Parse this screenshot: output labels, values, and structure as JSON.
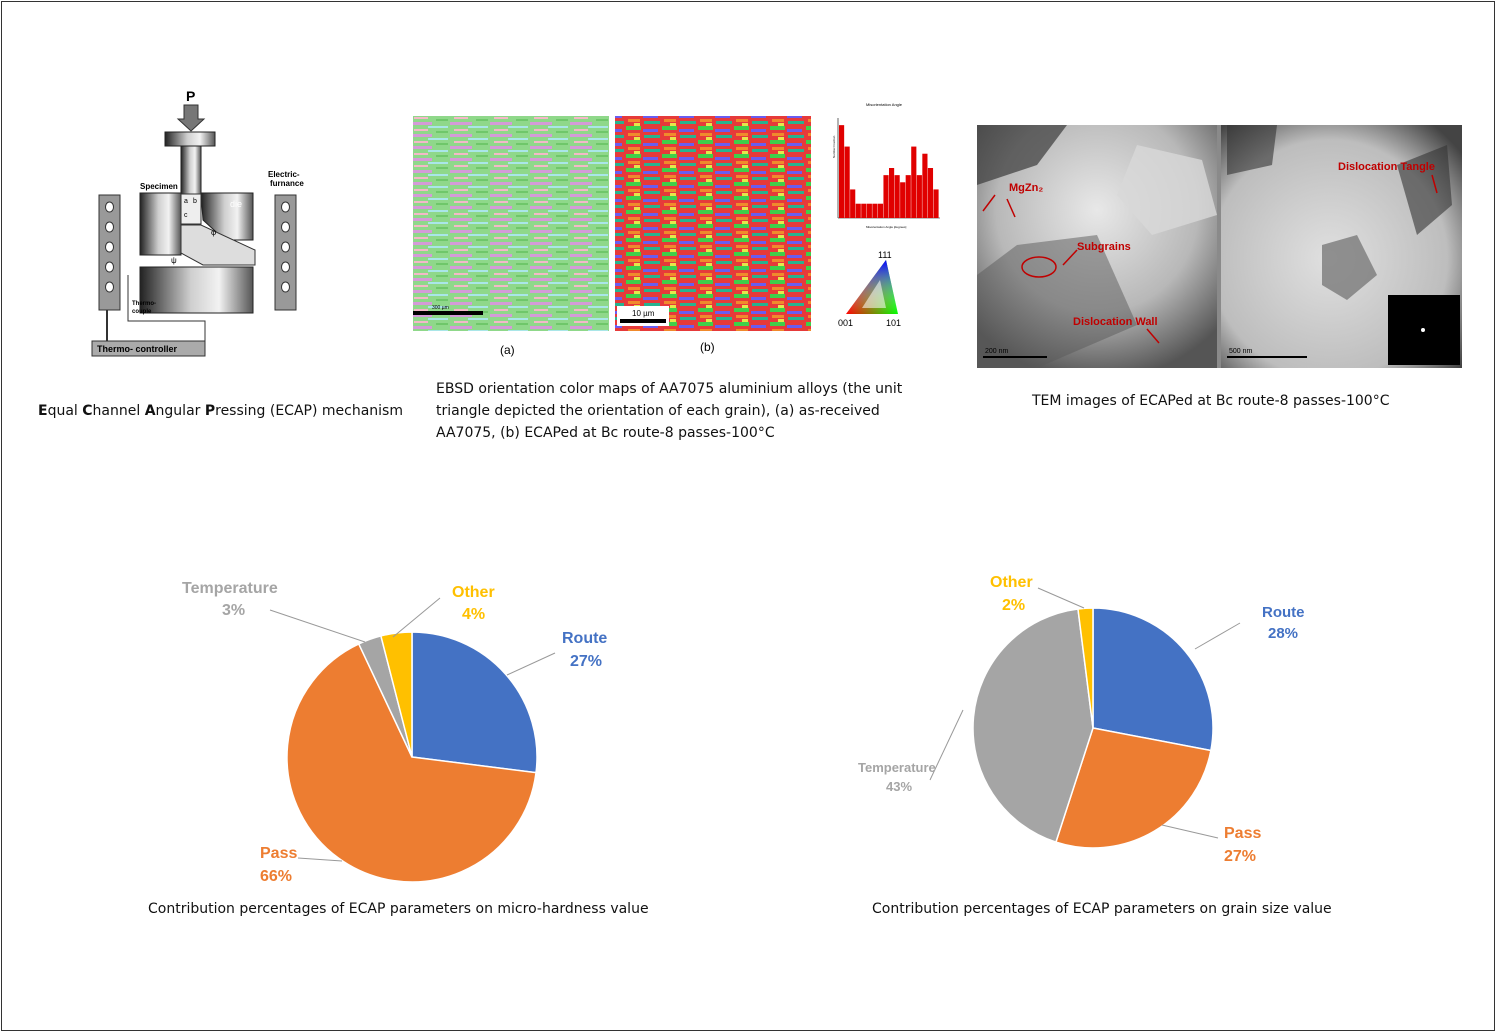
{
  "panels": {
    "ecap": {
      "caption_parts": [
        {
          "b": "E",
          "t": "qual "
        },
        {
          "b": "C",
          "t": "hannel "
        },
        {
          "b": "A",
          "t": "ngular "
        },
        {
          "b": "P",
          "t": "ressing (ECAP) mechanism"
        }
      ],
      "labels": {
        "p": "P",
        "specimen": "Specimen",
        "die": "die",
        "furnace_line1": "Electric-",
        "furnace_line2": "furnance",
        "thermo_line1": "Thermo-",
        "thermo_line2": "couple",
        "controller": "Thermo- controller",
        "a": "a",
        "b": "b",
        "c": "c",
        "phi": "φ",
        "psi": "ψ"
      }
    },
    "ebsd": {
      "caption_line1": "EBSD orientation color maps of AA7075 aluminium alloys (the unit",
      "caption_line2": "triangle depicted the orientation of each grain), (a) as-received",
      "caption_line3": "AA7075, (b) ECAPed at Bc route-8 passes-100°C",
      "label_a": "(a)",
      "label_b": "(b)",
      "scale_a": "300 µm",
      "scale_b": "10 µm",
      "hist_title": "Misorientation Angle",
      "hist_xlabel": "Misorientation Angle [degrees]",
      "hist_ylabel": "Number Fraction",
      "hist_values": [
        0.13,
        0.1,
        0.04,
        0.02,
        0.02,
        0.02,
        0.02,
        0.02,
        0.06,
        0.07,
        0.06,
        0.05,
        0.06,
        0.1,
        0.06,
        0.09,
        0.07,
        0.04
      ],
      "tri_111": "111",
      "tri_001": "001",
      "tri_101": "101"
    },
    "tem": {
      "caption": "TEM images of ECAPed at Bc route-8 passes-100°C",
      "label_mgzn": "MgZn₂",
      "label_subgrains": "Subgrains",
      "label_wall": "Dislocation Wall",
      "label_tangle": "Dislocation Tangle",
      "scale_left": "200 nm",
      "scale_right": "500 nm"
    }
  },
  "colors": {
    "route": "#4472C4",
    "pass": "#ED7D31",
    "temperature": "#A5A5A5",
    "other": "#FFC000"
  },
  "chart_data": [
    {
      "type": "pie",
      "title": "",
      "caption": "Contribution percentages of ECAP parameters on micro-hardness value",
      "categories": [
        "Route",
        "Pass",
        "Temperature",
        "Other"
      ],
      "values": [
        27,
        66,
        3,
        4
      ],
      "labels": [
        "27%",
        "66%",
        "3%",
        "4%"
      ]
    },
    {
      "type": "pie",
      "title": "",
      "caption": "Contribution percentages of ECAP parameters on grain size value",
      "categories": [
        "Route",
        "Pass",
        "Temperature",
        "Other"
      ],
      "values": [
        28,
        27,
        43,
        2
      ],
      "labels": [
        "28%",
        "27%",
        "43%",
        "2%"
      ]
    }
  ]
}
